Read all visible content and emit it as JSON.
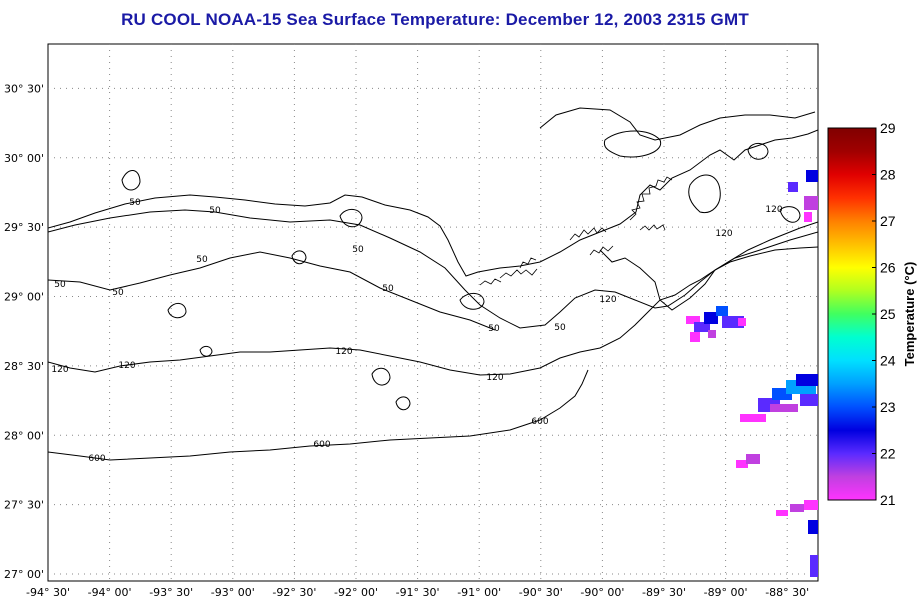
{
  "title": "RU COOL  NOAA-15  Sea Surface Temperature:  December 12, 2003 2315 GMT",
  "axes": {
    "lon_ticks": [
      "-94° 30'",
      "-94° 00'",
      "-93° 30'",
      "-93° 00'",
      "-92° 30'",
      "-92° 00'",
      "-91° 30'",
      "-91° 00'",
      "-90° 30'",
      "-90° 00'",
      "-89° 30'",
      "-89° 00'",
      "-88° 30'"
    ],
    "lat_ticks": [
      "30° 30'",
      "30° 00'",
      "29° 30'",
      "29° 00'",
      "28° 30'",
      "28° 00'",
      "27° 30'",
      "27° 00'"
    ],
    "lon_range": [
      -94.5,
      -88.25
    ],
    "lat_range": [
      26.95,
      30.82
    ]
  },
  "contour_labels": [
    "50",
    "50",
    "50",
    "50",
    "50",
    "50",
    "50",
    "50",
    "50",
    "120",
    "120",
    "120",
    "120",
    "120",
    "120",
    "120",
    "600",
    "600",
    "600"
  ],
  "colorbar": {
    "title": "Temperature (°C)",
    "min": 21,
    "max": 29,
    "ticks": [
      "29",
      "28",
      "27",
      "26",
      "25",
      "24",
      "23",
      "22",
      "21"
    ],
    "colors": [
      "#ff33ff",
      "#c040e0",
      "#5a2aff",
      "#0000e0",
      "#0050ff",
      "#00a0ff",
      "#00e0ff",
      "#00ffd0",
      "#40ff60",
      "#b0ff20",
      "#ffff00",
      "#ffc000",
      "#ff8000",
      "#ff3000",
      "#e00000",
      "#a00000",
      "#800000"
    ]
  },
  "colors": {
    "title": "#1a1aa6",
    "contour": "#000000",
    "grid": "#888888"
  }
}
